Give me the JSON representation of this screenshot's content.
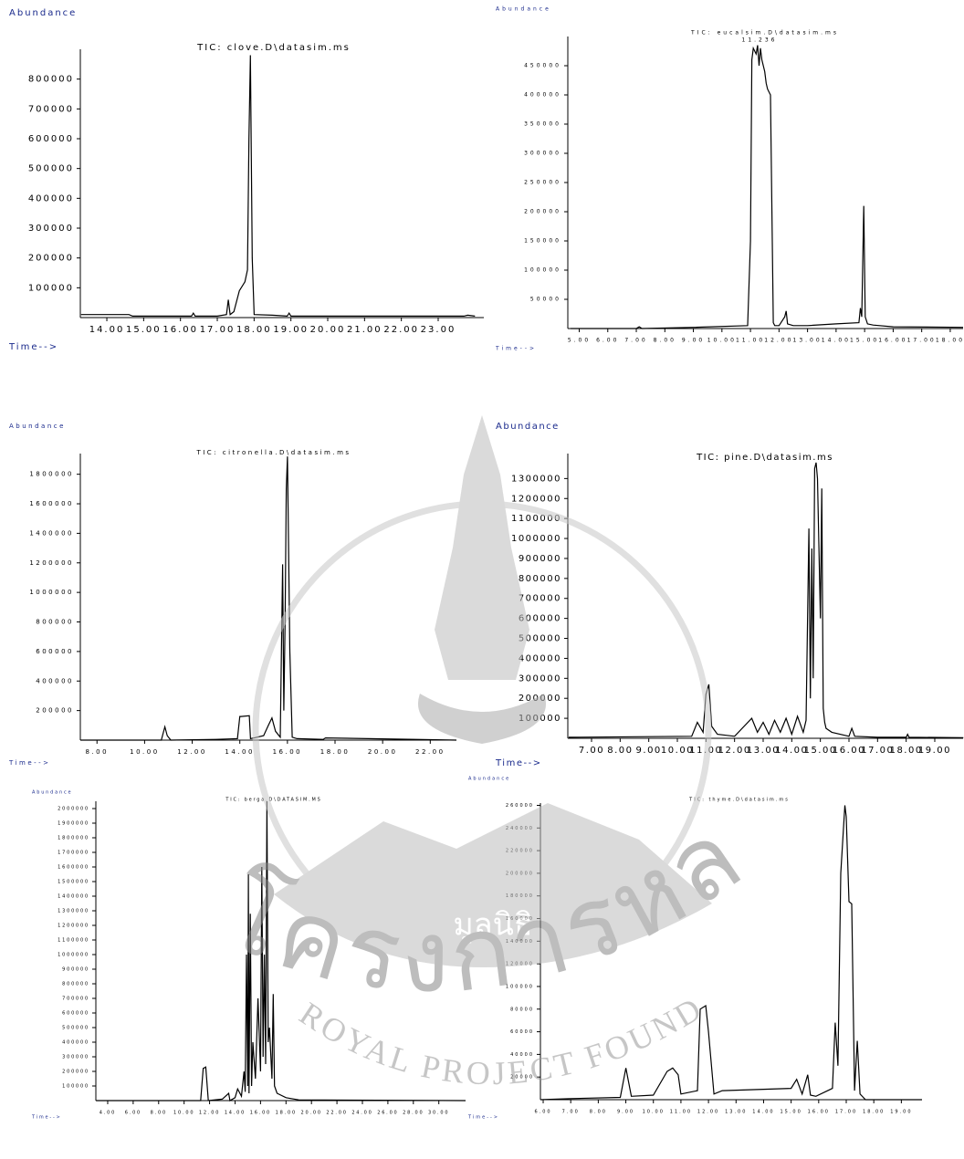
{
  "chart_data": [
    {
      "type": "line",
      "title": "TIC: clove.D\\datasim.ms",
      "y_label": "Abundance",
      "x_label": "Time-->",
      "color": "#000000",
      "x": [
        13.3,
        14.6,
        14.7,
        16.3,
        16.35,
        16.4,
        17.0,
        17.25,
        17.3,
        17.35,
        17.45,
        17.6,
        17.75,
        17.82,
        17.86,
        17.9,
        17.95,
        18.0,
        18.5,
        18.9,
        18.95,
        19.0,
        23.7,
        23.8,
        24.0
      ],
      "values": [
        10000,
        10000,
        5000,
        5000,
        15000,
        5000,
        5000,
        10000,
        60000,
        10000,
        20000,
        90000,
        120000,
        160000,
        600000,
        880000,
        200000,
        10000,
        8000,
        5000,
        15000,
        5000,
        5000,
        8000,
        5000
      ],
      "xlim": [
        13.28,
        24.24
      ],
      "ylim": [
        0,
        900000
      ],
      "xticks": [
        {
          "value": 14,
          "label": "14.00"
        },
        {
          "value": 15,
          "label": "15.00"
        },
        {
          "value": 16,
          "label": "16.00"
        },
        {
          "value": 17,
          "label": "17.00"
        },
        {
          "value": 18,
          "label": "18.00"
        },
        {
          "value": 19,
          "label": "19.00"
        },
        {
          "value": 20,
          "label": "20.00"
        },
        {
          "value": 21,
          "label": "21.00"
        },
        {
          "value": 22,
          "label": "22.00"
        },
        {
          "value": 23,
          "label": "23.00"
        }
      ],
      "yticks": [
        100000,
        200000,
        300000,
        400000,
        500000,
        600000,
        700000,
        800000
      ]
    },
    {
      "type": "line",
      "title": "TIC: eucalsim.D\\datasim.ms",
      "annotation": "11.236",
      "y_label": "Abundance",
      "x_label": "Time-->",
      "color": "#000000",
      "x": [
        4.7,
        7.0,
        7.1,
        7.2,
        9.0,
        10.9,
        11.0,
        11.05,
        11.1,
        11.2,
        11.25,
        11.3,
        11.35,
        11.4,
        11.5,
        11.55,
        11.6,
        11.7,
        11.8,
        11.85,
        12.0,
        12.2,
        12.25,
        12.3,
        12.5,
        13.0,
        14.0,
        14.8,
        14.85,
        14.9,
        14.97,
        15.02,
        15.1,
        15.3,
        16.0,
        18.45
      ],
      "values": [
        0,
        0,
        3000,
        0,
        2000,
        5000,
        150000,
        460000,
        480000,
        470000,
        485000,
        450000,
        480000,
        460000,
        440000,
        420000,
        410000,
        400000,
        10000,
        5000,
        5000,
        20000,
        30000,
        8000,
        5000,
        5000,
        8000,
        10000,
        35000,
        20000,
        210000,
        20000,
        8000,
        6000,
        3000,
        2000
      ],
      "xlim": [
        4.6,
        18.45
      ],
      "ylim": [
        0,
        500000
      ],
      "xticks": [
        {
          "value": 5,
          "label": "5.00"
        },
        {
          "value": 6,
          "label": "6.00"
        },
        {
          "value": 7,
          "label": "7.00"
        },
        {
          "value": 8,
          "label": "8.00"
        },
        {
          "value": 9,
          "label": "9.00"
        },
        {
          "value": 10,
          "label": "10.00"
        },
        {
          "value": 11,
          "label": "11.00"
        },
        {
          "value": 12,
          "label": "12.00"
        },
        {
          "value": 13,
          "label": "13.00"
        },
        {
          "value": 14,
          "label": "14.00"
        },
        {
          "value": 15,
          "label": "15.00"
        },
        {
          "value": 16,
          "label": "16.00"
        },
        {
          "value": 17,
          "label": "17.00"
        },
        {
          "value": 18,
          "label": "18.00"
        }
      ],
      "yticks": [
        50000,
        100000,
        150000,
        200000,
        250000,
        300000,
        350000,
        400000,
        450000
      ]
    },
    {
      "type": "line",
      "title": "TIC: citronella.D\\datasim.ms",
      "y_label": "Abundance",
      "x_label": "Time-->",
      "color": "#000000",
      "x": [
        7.3,
        10.7,
        10.85,
        10.95,
        11.1,
        13.0,
        13.9,
        14.0,
        14.05,
        14.4,
        14.45,
        14.6,
        15.0,
        15.2,
        15.35,
        15.5,
        15.7,
        15.8,
        15.85,
        15.9,
        15.95,
        16.0,
        16.1,
        16.2,
        16.4,
        17.5,
        17.6,
        23.1
      ],
      "values": [
        0,
        0,
        90000,
        30000,
        0,
        5000,
        10000,
        160000,
        160000,
        165000,
        10000,
        15000,
        30000,
        100000,
        150000,
        60000,
        20000,
        1190000,
        200000,
        800000,
        1700000,
        1920000,
        600000,
        20000,
        10000,
        5000,
        15000,
        0
      ],
      "xlim": [
        7.3,
        23.1
      ],
      "ylim": [
        0,
        1940000
      ],
      "xticks": [
        {
          "value": 8,
          "label": "8.00"
        },
        {
          "value": 10,
          "label": "10.00"
        },
        {
          "value": 12,
          "label": "12.00"
        },
        {
          "value": 14,
          "label": "14.00"
        },
        {
          "value": 16,
          "label": "16.00"
        },
        {
          "value": 18,
          "label": "18.00"
        },
        {
          "value": 20,
          "label": "20.00"
        },
        {
          "value": 22,
          "label": "22.00"
        }
      ],
      "yticks": [
        200000,
        400000,
        600000,
        800000,
        1000000,
        1200000,
        1400000,
        1600000,
        1800000
      ]
    },
    {
      "type": "line",
      "title": "TIC: pine.D\\datasim.ms",
      "y_label": "Abundance",
      "x_label": "Time-->",
      "color": "#000000",
      "x": [
        6.2,
        10.5,
        10.7,
        10.9,
        11.0,
        11.1,
        11.2,
        11.4,
        12.0,
        12.6,
        12.8,
        13.0,
        13.2,
        13.4,
        13.6,
        13.8,
        14.0,
        14.2,
        14.4,
        14.5,
        14.6,
        14.65,
        14.7,
        14.75,
        14.8,
        14.85,
        14.9,
        15.0,
        15.05,
        15.1,
        15.15,
        15.2,
        15.4,
        16.0,
        16.1,
        16.2,
        17.0,
        18.0,
        18.05,
        18.1,
        20.0
      ],
      "values": [
        5000,
        10000,
        80000,
        30000,
        220000,
        270000,
        60000,
        20000,
        10000,
        100000,
        30000,
        80000,
        20000,
        90000,
        30000,
        100000,
        20000,
        110000,
        30000,
        90000,
        1050000,
        200000,
        950000,
        300000,
        1350000,
        1380000,
        1300000,
        600000,
        1250000,
        150000,
        80000,
        50000,
        30000,
        10000,
        50000,
        10000,
        5000,
        5000,
        20000,
        5000,
        3000
      ],
      "xlim": [
        6.17,
        19.99
      ],
      "ylim": [
        0,
        1425000
      ],
      "xticks": [
        {
          "value": 7,
          "label": "7.00"
        },
        {
          "value": 8,
          "label": "8.00"
        },
        {
          "value": 9,
          "label": "9.00"
        },
        {
          "value": 10,
          "label": "10.00"
        },
        {
          "value": 11,
          "label": "11.00"
        },
        {
          "value": 12,
          "label": "12.00"
        },
        {
          "value": 13,
          "label": "13.00"
        },
        {
          "value": 14,
          "label": "14.00"
        },
        {
          "value": 15,
          "label": "15.00"
        },
        {
          "value": 16,
          "label": "16.00"
        },
        {
          "value": 17,
          "label": "17.00"
        },
        {
          "value": 18,
          "label": "18.00"
        },
        {
          "value": 19,
          "label": "19.00"
        }
      ],
      "yticks": [
        100000,
        200000,
        300000,
        400000,
        500000,
        600000,
        700000,
        800000,
        900000,
        1000000,
        1100000,
        1200000,
        1300000
      ]
    },
    {
      "type": "line",
      "title": "TIC: berga.D\\DATASIM.MS",
      "y_label": "Abundance",
      "x_label": "Time-->",
      "color": "#000000",
      "x": [
        3.1,
        9.0,
        11.3,
        11.5,
        11.7,
        11.9,
        13.0,
        13.5,
        13.6,
        14.0,
        14.2,
        14.5,
        14.7,
        14.8,
        14.9,
        15.0,
        15.05,
        15.1,
        15.2,
        15.3,
        15.4,
        15.6,
        15.8,
        16.0,
        16.1,
        16.2,
        16.3,
        16.4,
        16.5,
        16.6,
        16.7,
        16.9,
        17.0,
        17.1,
        17.3,
        18.0,
        19.0,
        32.1
      ],
      "values": [
        0,
        0,
        0,
        220000,
        230000,
        0,
        10000,
        50000,
        0,
        20000,
        80000,
        30000,
        200000,
        60000,
        1000000,
        100000,
        1550000,
        50000,
        1280000,
        100000,
        400000,
        150000,
        700000,
        200000,
        1600000,
        300000,
        1000000,
        250000,
        2050000,
        400000,
        500000,
        150000,
        730000,
        100000,
        50000,
        20000,
        5000,
        0
      ],
      "xlim": [
        3.07,
        32.1
      ],
      "ylim": [
        0,
        2050000
      ],
      "xticks": [
        {
          "value": 4,
          "label": "4.00"
        },
        {
          "value": 6,
          "label": "6.00"
        },
        {
          "value": 8,
          "label": "8.00"
        },
        {
          "value": 10,
          "label": "10.00"
        },
        {
          "value": 12,
          "label": "12.00"
        },
        {
          "value": 14,
          "label": "14.00"
        },
        {
          "value": 16,
          "label": "16.00"
        },
        {
          "value": 18,
          "label": "18.00"
        },
        {
          "value": 20,
          "label": "20.00"
        },
        {
          "value": 22,
          "label": "22.00"
        },
        {
          "value": 24,
          "label": "24.00"
        },
        {
          "value": 26,
          "label": "26.00"
        },
        {
          "value": 28,
          "label": "28.00"
        },
        {
          "value": 30,
          "label": "30.00"
        }
      ],
      "yticks": [
        100000,
        200000,
        300000,
        400000,
        500000,
        600000,
        700000,
        800000,
        900000,
        1000000,
        1100000,
        1200000,
        1300000,
        1400000,
        1500000,
        1600000,
        1700000,
        1800000,
        1900000,
        2000000
      ]
    },
    {
      "type": "line",
      "title": "TIC: thyme.D\\datasim.ms",
      "y_label": "Abundance",
      "x_label": "Time-->",
      "color": "#000000",
      "x": [
        5.9,
        7.0,
        8.8,
        9.0,
        9.2,
        10.0,
        10.5,
        10.7,
        10.9,
        11.0,
        11.6,
        11.7,
        11.9,
        12.0,
        12.2,
        12.5,
        15.0,
        15.2,
        15.4,
        15.6,
        15.7,
        15.9,
        16.5,
        16.6,
        16.7,
        16.8,
        16.95,
        17.0,
        17.1,
        17.2,
        17.3,
        17.4,
        17.5,
        17.7,
        19.75
      ],
      "values": [
        0,
        1000,
        2000,
        28000,
        3000,
        4000,
        25000,
        28000,
        22000,
        5000,
        8000,
        80000,
        83000,
        60000,
        5000,
        8000,
        10000,
        18000,
        5000,
        22000,
        4000,
        3000,
        10000,
        68000,
        30000,
        200000,
        260000,
        250000,
        175000,
        173000,
        8000,
        52000,
        5000,
        0,
        0
      ],
      "xlim": [
        5.9,
        19.75
      ],
      "ylim": [
        0,
        262000
      ],
      "xticks": [
        {
          "value": 6,
          "label": "6.00"
        },
        {
          "value": 7,
          "label": "7.00"
        },
        {
          "value": 8,
          "label": "8.00"
        },
        {
          "value": 9,
          "label": "9.00"
        },
        {
          "value": 10,
          "label": "10.00"
        },
        {
          "value": 11,
          "label": "11.00"
        },
        {
          "value": 12,
          "label": "12.00"
        },
        {
          "value": 13,
          "label": "13.00"
        },
        {
          "value": 14,
          "label": "14.00"
        },
        {
          "value": 15,
          "label": "15.00"
        },
        {
          "value": 16,
          "label": "16.00"
        },
        {
          "value": 17,
          "label": "17.00"
        },
        {
          "value": 18,
          "label": "18.00"
        },
        {
          "value": 19,
          "label": "19.00"
        }
      ],
      "yticks": [
        20000,
        40000,
        60000,
        80000,
        100000,
        120000,
        140000,
        160000,
        180000,
        200000,
        220000,
        240000,
        260000
      ]
    }
  ],
  "watermark": {
    "center": "มูลนิธิ",
    "arc_top": "โครงการหลวง",
    "arc_bottom": "ROYAL PROJECT FOUNDATION"
  }
}
